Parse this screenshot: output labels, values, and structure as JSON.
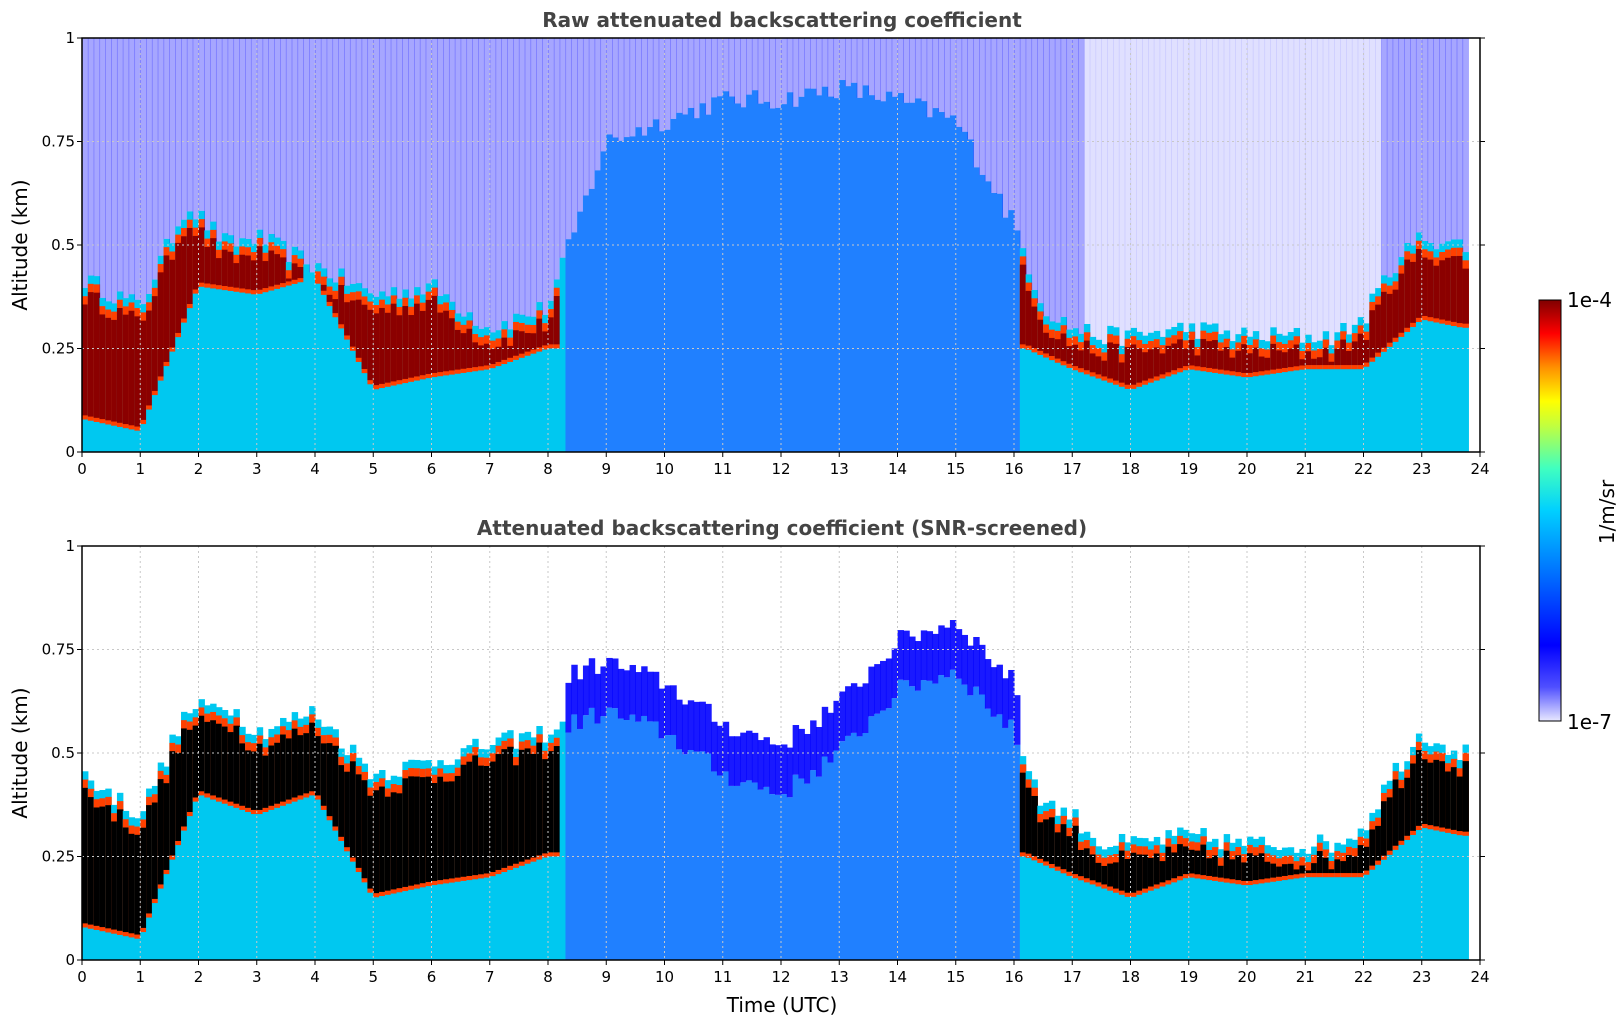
{
  "chart_data": [
    {
      "type": "heatmap",
      "title": "Raw attenuated backscattering coefficient",
      "ylabel": "Altitude (km)",
      "xlabel": "",
      "xlim": [
        0,
        24
      ],
      "ylim": [
        0,
        1
      ],
      "x_ticks": [
        "0",
        "1",
        "2",
        "3",
        "4",
        "5",
        "6",
        "7",
        "8",
        "9",
        "10",
        "11",
        "12",
        "13",
        "14",
        "15",
        "16",
        "17",
        "18",
        "19",
        "20",
        "21",
        "22",
        "23",
        "24"
      ],
      "y_ticks": [
        "0",
        "0.25",
        "0.5",
        "0.75",
        "1"
      ],
      "grid": true,
      "layer_top_km": [
        [
          0.0,
          0.42
        ],
        [
          1.0,
          0.35
        ],
        [
          1.8,
          0.6
        ],
        [
          2.5,
          0.5
        ],
        [
          3.0,
          0.52
        ],
        [
          4.0,
          0.45
        ],
        [
          5.0,
          0.38
        ],
        [
          6.0,
          0.4
        ],
        [
          7.0,
          0.3
        ],
        [
          8.0,
          0.35
        ],
        [
          9.0,
          0.75
        ],
        [
          10.0,
          0.8
        ],
        [
          11.0,
          0.85
        ],
        [
          12.0,
          0.85
        ],
        [
          13.0,
          0.88
        ],
        [
          14.0,
          0.85
        ],
        [
          15.0,
          0.8
        ],
        [
          16.0,
          0.55
        ],
        [
          16.5,
          0.35
        ],
        [
          17.0,
          0.3
        ],
        [
          17.5,
          0.28
        ],
        [
          18.0,
          0.28
        ],
        [
          19.0,
          0.3
        ],
        [
          20.0,
          0.28
        ],
        [
          21.0,
          0.28
        ],
        [
          21.5,
          0.28
        ],
        [
          22.0,
          0.32
        ],
        [
          22.5,
          0.45
        ],
        [
          23.0,
          0.52
        ],
        [
          23.7,
          0.5
        ]
      ],
      "cloud_base_km": [
        [
          0.0,
          0.08
        ],
        [
          1.0,
          0.05
        ],
        [
          2.0,
          0.4
        ],
        [
          3.0,
          0.38
        ],
        [
          4.0,
          0.42
        ],
        [
          5.0,
          0.15
        ],
        [
          6.0,
          0.18
        ],
        [
          7.0,
          0.2
        ],
        [
          8.0,
          0.25
        ],
        [
          16.2,
          0.25
        ],
        [
          17.0,
          0.2
        ],
        [
          18.0,
          0.15
        ],
        [
          19.0,
          0.2
        ],
        [
          20.0,
          0.18
        ],
        [
          21.0,
          0.2
        ],
        [
          22.0,
          0.2
        ],
        [
          23.0,
          0.32
        ],
        [
          23.7,
          0.3
        ]
      ]
    },
    {
      "type": "heatmap",
      "title": "Attenuated backscattering coefficient (SNR-screened)",
      "ylabel": "Altitude (km)",
      "xlabel": "Time (UTC)",
      "xlim": [
        0,
        24
      ],
      "ylim": [
        0,
        1
      ],
      "x_ticks": [
        "0",
        "1",
        "2",
        "3",
        "4",
        "5",
        "6",
        "7",
        "8",
        "9",
        "10",
        "11",
        "12",
        "13",
        "14",
        "15",
        "16",
        "17",
        "18",
        "19",
        "20",
        "21",
        "22",
        "23",
        "24"
      ],
      "y_ticks": [
        "0",
        "0.25",
        "0.5",
        "0.75",
        "1"
      ],
      "grid": true,
      "layer_top_km": [
        [
          0.0,
          0.45
        ],
        [
          1.0,
          0.35
        ],
        [
          1.8,
          0.6
        ],
        [
          2.5,
          0.62
        ],
        [
          3.0,
          0.55
        ],
        [
          4.0,
          0.6
        ],
        [
          5.0,
          0.45
        ],
        [
          6.0,
          0.48
        ],
        [
          7.0,
          0.52
        ],
        [
          8.0,
          0.55
        ],
        [
          9.0,
          0.6
        ],
        [
          10.0,
          0.55
        ],
        [
          11.0,
          0.45
        ],
        [
          12.0,
          0.4
        ],
        [
          13.0,
          0.5
        ],
        [
          14.0,
          0.65
        ],
        [
          15.0,
          0.7
        ],
        [
          16.0,
          0.55
        ],
        [
          16.5,
          0.38
        ],
        [
          17.0,
          0.35
        ],
        [
          17.5,
          0.28
        ],
        [
          18.0,
          0.28
        ],
        [
          19.0,
          0.3
        ],
        [
          20.0,
          0.28
        ],
        [
          21.0,
          0.28
        ],
        [
          21.5,
          0.28
        ],
        [
          22.0,
          0.32
        ],
        [
          22.5,
          0.45
        ],
        [
          23.0,
          0.55
        ],
        [
          23.7,
          0.5
        ]
      ],
      "cloud_base_km": [
        [
          0.0,
          0.08
        ],
        [
          1.0,
          0.05
        ],
        [
          2.0,
          0.4
        ],
        [
          3.0,
          0.35
        ],
        [
          4.0,
          0.4
        ],
        [
          5.0,
          0.15
        ],
        [
          6.0,
          0.18
        ],
        [
          7.0,
          0.2
        ],
        [
          8.0,
          0.25
        ],
        [
          16.2,
          0.25
        ],
        [
          17.0,
          0.2
        ],
        [
          18.0,
          0.15
        ],
        [
          19.0,
          0.2
        ],
        [
          20.0,
          0.18
        ],
        [
          21.0,
          0.2
        ],
        [
          22.0,
          0.2
        ],
        [
          23.0,
          0.32
        ],
        [
          23.7,
          0.3
        ]
      ]
    }
  ],
  "colorbar": {
    "max_label": "1e-4",
    "min_label": "1e-7",
    "units": "1/m/sr",
    "colormap": [
      "#e8e8ff",
      "#0000ff",
      "#0060ff",
      "#00c0ff",
      "#40ffc0",
      "#ffff00",
      "#ff8000",
      "#ff0000",
      "#800000"
    ]
  },
  "colors": {
    "clear": "#ffffff",
    "noise": "#0000ff",
    "aerosol_low": "#00c8f0",
    "aerosol_mid": "#2080ff",
    "cloud_core": "#8b0000",
    "cloud_core_screened": "#000000",
    "cloud_edge": "#ff4000"
  }
}
